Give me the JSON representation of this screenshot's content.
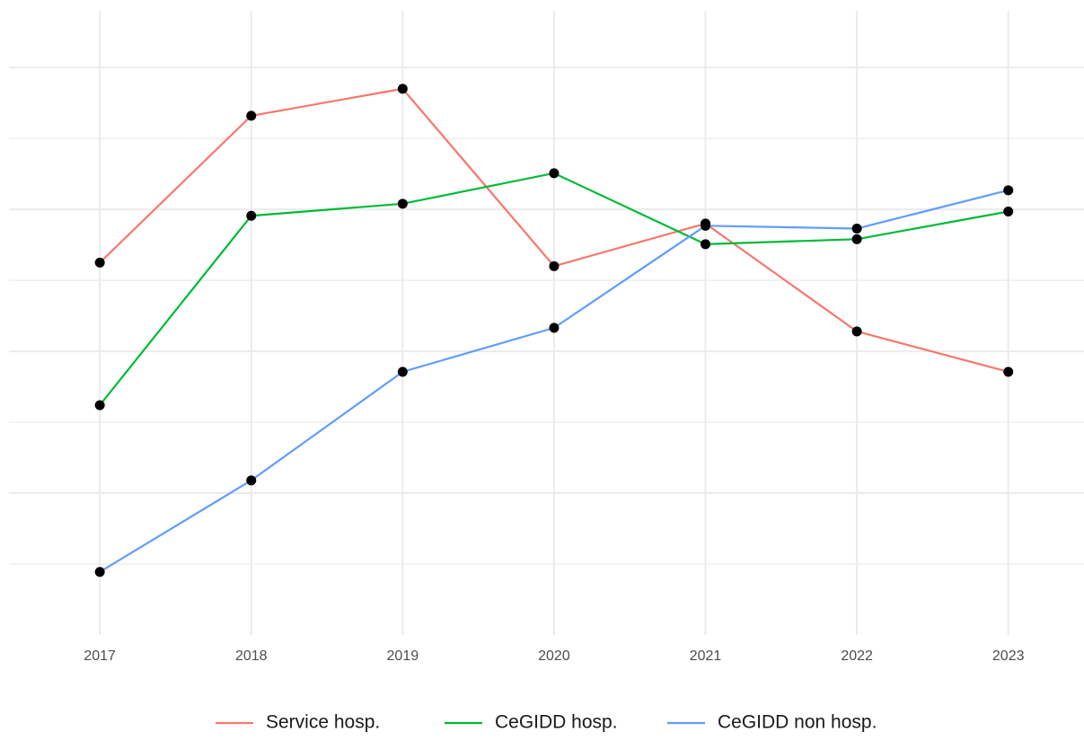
{
  "chart_data": {
    "type": "line",
    "x": [
      2017,
      2018,
      2019,
      2020,
      2021,
      2022,
      2023
    ],
    "xlim": [
      2016.4,
      2023.5
    ],
    "xticks": [
      2017,
      2018,
      2019,
      2020,
      2021,
      2022,
      2023
    ],
    "ylim": [
      0,
      8.8
    ],
    "yticks": [
      1,
      2,
      3,
      4,
      5,
      6,
      7,
      8
    ],
    "grid": true,
    "legend": "bottom",
    "marker_color": "#000000",
    "series": [
      {
        "name": "Service hosp.",
        "color": "#f8766d",
        "values": [
          5.25,
          7.32,
          7.7,
          5.2,
          5.8,
          4.28,
          3.71
        ]
      },
      {
        "name": "CeGIDD hosp.",
        "color": "#00ba38",
        "values": [
          3.24,
          5.91,
          6.08,
          6.51,
          5.51,
          5.58,
          5.97
        ]
      },
      {
        "name": "CeGIDD non hosp.",
        "color": "#619cff",
        "values": [
          0.89,
          2.18,
          3.71,
          4.33,
          5.77,
          5.73,
          6.27
        ]
      }
    ]
  }
}
